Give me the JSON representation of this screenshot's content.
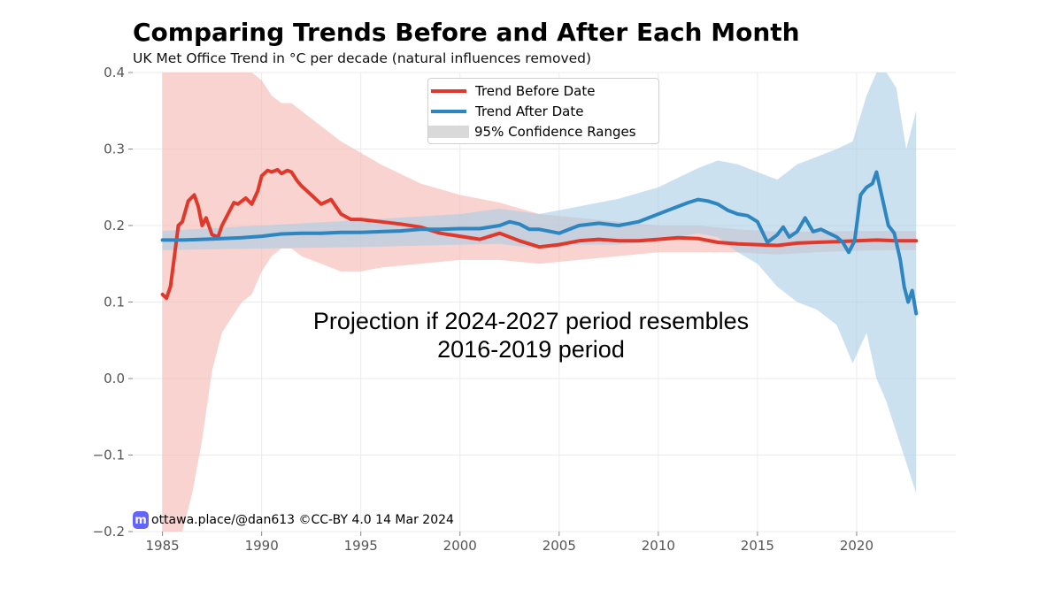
{
  "title": "Comparing Trends Before and After Each Month",
  "subtitle": "UK Met Office Trend in °C per decade (natural influences removed)",
  "annotation": {
    "line1": "Projection if 2024-2027 period resembles",
    "line2": "2016-2019 period"
  },
  "credit": {
    "icon": "mastodon-icon",
    "text": "ottawa.place/@dan613 ©CC-BY 4.0  14 Mar 2024"
  },
  "legend": {
    "before": "Trend Before Date",
    "after": "Trend After Date",
    "ci": "95% Confidence Ranges"
  },
  "colors": {
    "before": "#e0392b",
    "after": "#2e86c1",
    "before_band": "#f4b6b0",
    "after_band": "#a9cde6",
    "ci_legend": "#d9d9d9",
    "grid": "#ebebeb"
  },
  "chart_data": {
    "type": "line",
    "xlabel": "",
    "ylabel": "",
    "xlim": [
      1983.5,
      2025.0
    ],
    "ylim": [
      -0.2,
      0.4
    ],
    "x_ticks": [
      1985,
      1990,
      1995,
      2000,
      2005,
      2010,
      2015,
      2020
    ],
    "x_tick_labels": [
      "1985",
      "1990",
      "1995",
      "2000",
      "2005",
      "2010",
      "2015",
      "2020"
    ],
    "y_ticks": [
      0.4,
      0.3,
      0.2,
      0.1,
      0.0,
      -0.1,
      -0.2
    ],
    "y_tick_labels": [
      "0.4",
      "0.3",
      "0.2",
      "0.1",
      "0.0",
      "−0.1",
      "−0.2"
    ],
    "grid": true,
    "legend_position": "top-center",
    "series": [
      {
        "name": "Trend Before Date",
        "x": [
          1985.0,
          1985.2,
          1985.4,
          1985.6,
          1985.8,
          1986.0,
          1986.3,
          1986.6,
          1986.8,
          1987.0,
          1987.2,
          1987.5,
          1987.8,
          1988.0,
          1988.3,
          1988.6,
          1988.8,
          1989.0,
          1989.2,
          1989.5,
          1989.8,
          1990.0,
          1990.3,
          1990.5,
          1990.8,
          1991.0,
          1991.3,
          1991.5,
          1991.8,
          1992.0,
          1992.5,
          1993.0,
          1993.5,
          1994.0,
          1994.5,
          1995.0,
          1996.0,
          1997.0,
          1998.0,
          1999.0,
          2000.0,
          2001.0,
          2002.0,
          2003.0,
          2004.0,
          2005.0,
          2006.0,
          2007.0,
          2008.0,
          2009.0,
          2010.0,
          2011.0,
          2012.0,
          2013.0,
          2014.0,
          2015.0,
          2016.0,
          2017.0,
          2018.0,
          2019.0,
          2020.0,
          2021.0,
          2022.0,
          2023.0
        ],
        "y": [
          0.11,
          0.105,
          0.12,
          0.16,
          0.2,
          0.205,
          0.232,
          0.24,
          0.225,
          0.2,
          0.21,
          0.188,
          0.185,
          0.2,
          0.215,
          0.23,
          0.228,
          0.232,
          0.236,
          0.228,
          0.245,
          0.265,
          0.272,
          0.27,
          0.273,
          0.268,
          0.272,
          0.27,
          0.258,
          0.252,
          0.24,
          0.228,
          0.234,
          0.215,
          0.208,
          0.208,
          0.205,
          0.202,
          0.198,
          0.19,
          0.186,
          0.182,
          0.19,
          0.18,
          0.172,
          0.175,
          0.18,
          0.182,
          0.18,
          0.18,
          0.182,
          0.184,
          0.183,
          0.178,
          0.176,
          0.175,
          0.174,
          0.177,
          0.178,
          0.179,
          0.18,
          0.181,
          0.18,
          0.18
        ]
      },
      {
        "name": "Trend After Date",
        "x": [
          1985.0,
          1986.0,
          1987.0,
          1988.0,
          1989.0,
          1990.0,
          1991.0,
          1992.0,
          1993.0,
          1994.0,
          1995.0,
          1996.0,
          1997.0,
          1998.0,
          1999.0,
          2000.0,
          2001.0,
          2002.0,
          2002.5,
          2003.0,
          2003.5,
          2004.0,
          2005.0,
          2006.0,
          2007.0,
          2008.0,
          2009.0,
          2010.0,
          2011.0,
          2011.5,
          2012.0,
          2012.5,
          2013.0,
          2013.5,
          2014.0,
          2014.5,
          2015.0,
          2015.5,
          2016.0,
          2016.3,
          2016.6,
          2017.0,
          2017.4,
          2017.8,
          2018.2,
          2018.6,
          2019.0,
          2019.3,
          2019.6,
          2019.9,
          2020.2,
          2020.5,
          2020.8,
          2021.0,
          2021.3,
          2021.6,
          2021.9,
          2022.2,
          2022.4,
          2022.6,
          2022.8,
          2023.0
        ],
        "y": [
          0.181,
          0.181,
          0.182,
          0.183,
          0.184,
          0.186,
          0.189,
          0.19,
          0.19,
          0.191,
          0.191,
          0.192,
          0.193,
          0.195,
          0.195,
          0.196,
          0.196,
          0.2,
          0.205,
          0.202,
          0.195,
          0.195,
          0.19,
          0.2,
          0.203,
          0.2,
          0.205,
          0.215,
          0.225,
          0.23,
          0.234,
          0.232,
          0.228,
          0.22,
          0.215,
          0.213,
          0.205,
          0.178,
          0.188,
          0.198,
          0.185,
          0.192,
          0.21,
          0.192,
          0.195,
          0.19,
          0.185,
          0.178,
          0.165,
          0.18,
          0.24,
          0.25,
          0.255,
          0.27,
          0.235,
          0.2,
          0.19,
          0.155,
          0.12,
          0.1,
          0.115,
          0.085
        ]
      }
    ],
    "confidence_bands": [
      {
        "series": "Trend Before Date",
        "x": [
          1985.0,
          1985.5,
          1986.0,
          1986.5,
          1987.0,
          1987.5,
          1988.0,
          1988.5,
          1989.0,
          1989.5,
          1990.0,
          1990.5,
          1991.0,
          1991.5,
          1992.0,
          1993.0,
          1994.0,
          1995.0,
          1996.0,
          1998.0,
          2000.0,
          2002.0,
          2004.0,
          2006.0,
          2008.0,
          2010.0,
          2012.0,
          2014.0,
          2016.0,
          2018.0,
          2020.0,
          2022.0,
          2023.0
        ],
        "lower": [
          -0.2,
          -0.2,
          -0.2,
          -0.15,
          -0.08,
          0.01,
          0.06,
          0.08,
          0.1,
          0.11,
          0.14,
          0.16,
          0.17,
          0.17,
          0.16,
          0.15,
          0.14,
          0.14,
          0.145,
          0.15,
          0.155,
          0.155,
          0.15,
          0.155,
          0.16,
          0.165,
          0.165,
          0.165,
          0.162,
          0.165,
          0.167,
          0.168,
          0.168
        ],
        "upper": [
          0.4,
          0.4,
          0.4,
          0.4,
          0.4,
          0.4,
          0.4,
          0.4,
          0.4,
          0.4,
          0.39,
          0.37,
          0.36,
          0.36,
          0.35,
          0.33,
          0.31,
          0.295,
          0.28,
          0.255,
          0.24,
          0.23,
          0.215,
          0.21,
          0.205,
          0.2,
          0.2,
          0.195,
          0.192,
          0.192,
          0.193,
          0.193,
          0.193
        ]
      },
      {
        "series": "Trend After Date",
        "x": [
          1985.0,
          1990.0,
          1995.0,
          2000.0,
          2002.0,
          2004.0,
          2006.0,
          2008.0,
          2010.0,
          2012.0,
          2013.0,
          2014.0,
          2015.0,
          2016.0,
          2017.0,
          2018.0,
          2019.0,
          2019.8,
          2020.5,
          2021.0,
          2021.5,
          2022.0,
          2022.5,
          2023.0
        ],
        "lower": [
          0.168,
          0.17,
          0.172,
          0.175,
          0.176,
          0.17,
          0.175,
          0.175,
          0.18,
          0.19,
          0.185,
          0.165,
          0.15,
          0.12,
          0.1,
          0.09,
          0.07,
          0.02,
          0.06,
          0.0,
          -0.03,
          -0.07,
          -0.11,
          -0.15
        ],
        "upper": [
          0.193,
          0.2,
          0.207,
          0.215,
          0.222,
          0.215,
          0.225,
          0.235,
          0.25,
          0.275,
          0.285,
          0.28,
          0.27,
          0.26,
          0.28,
          0.29,
          0.3,
          0.31,
          0.37,
          0.4,
          0.4,
          0.38,
          0.3,
          0.35
        ]
      }
    ]
  }
}
